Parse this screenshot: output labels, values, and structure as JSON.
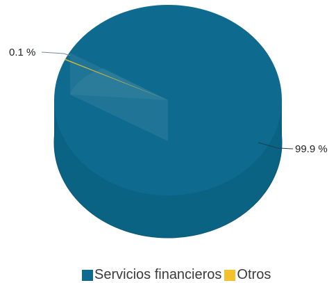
{
  "chart_data": {
    "type": "pie",
    "style": "3d",
    "categories": [
      "Servicios financieros",
      "Otros"
    ],
    "values": [
      99.9,
      0.1
    ],
    "data_labels": [
      "99.9 %",
      "0.1 %"
    ],
    "colors": [
      "#0e6a8e",
      "#f2c12e"
    ],
    "legend_position": "bottom"
  }
}
